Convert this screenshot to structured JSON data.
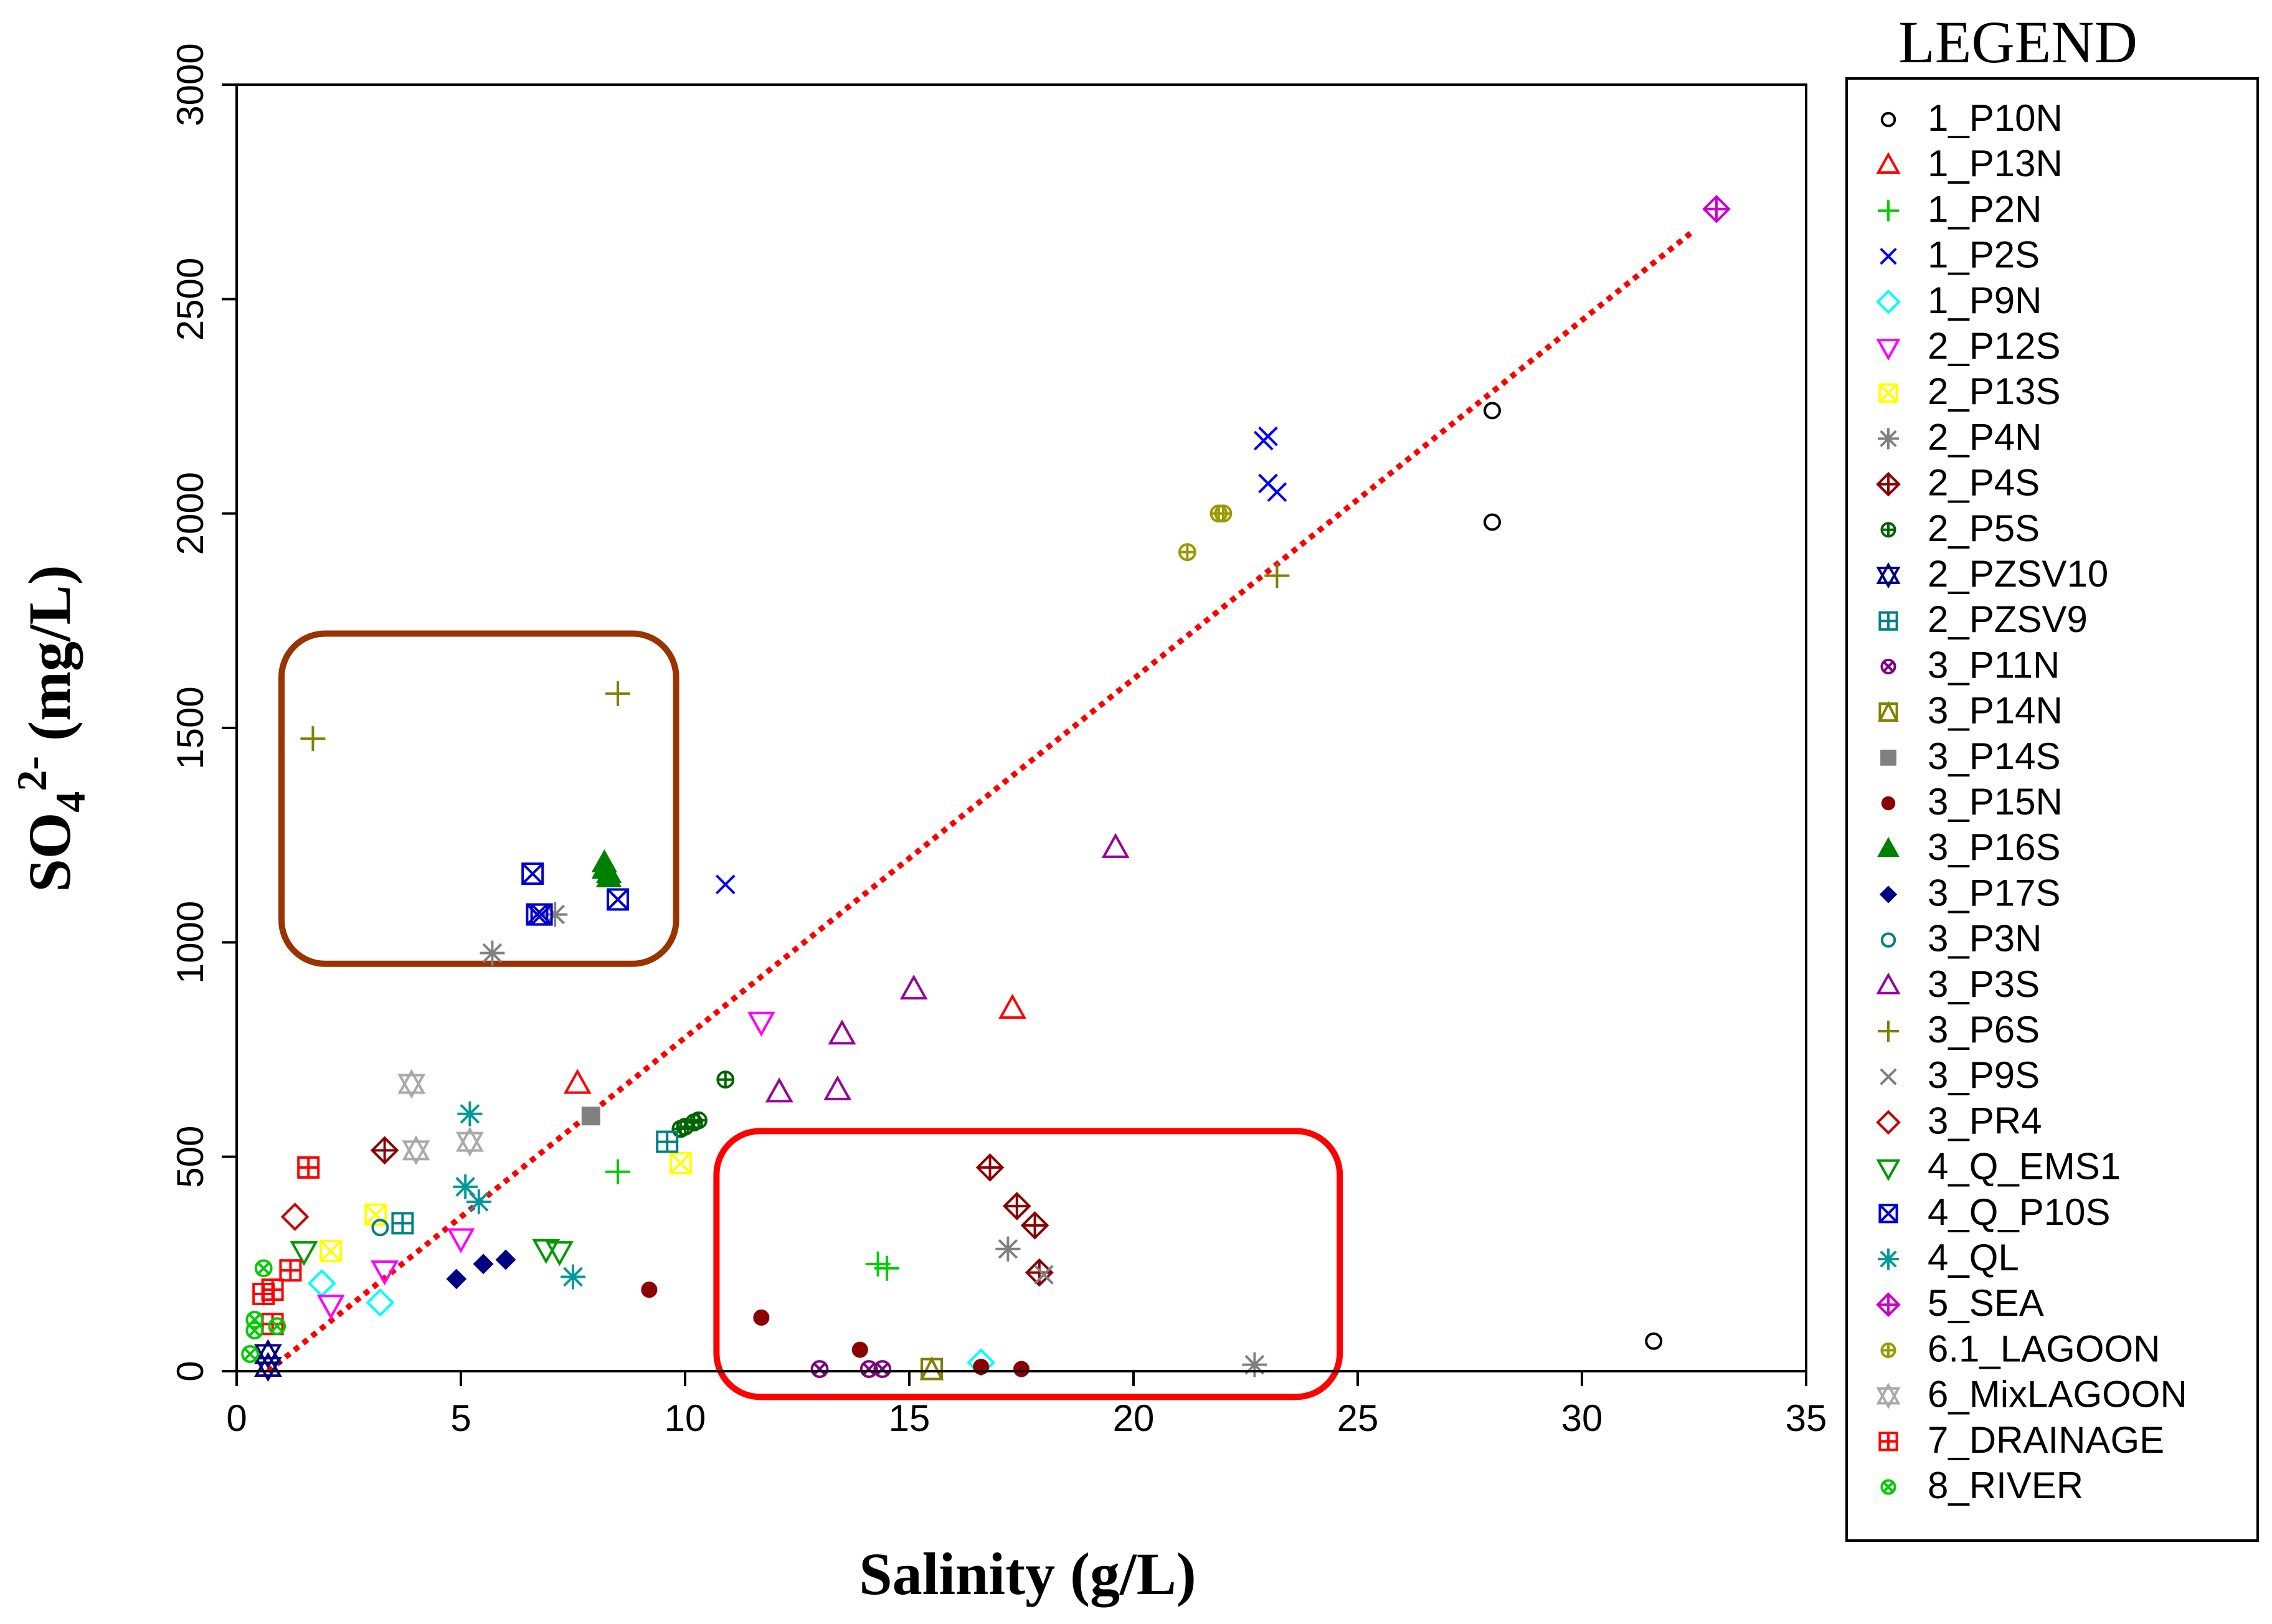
{
  "chart_data": {
    "type": "scatter",
    "title": "",
    "xlabel": "Salinity (g/L)",
    "ylabel": {
      "prefix": "SO",
      "sub": "4",
      "sup": "2-",
      "suffix": " (mg/L)"
    },
    "xlim": [
      0,
      35
    ],
    "ylim": [
      0,
      3000
    ],
    "xticks": [
      0,
      5,
      10,
      15,
      20,
      25,
      30,
      35
    ],
    "yticks": [
      0,
      500,
      1000,
      1500,
      2000,
      2500,
      3000
    ],
    "grid": false,
    "legend": {
      "title": "LEGEND",
      "position": "right"
    },
    "series": [
      {
        "name": "1_P10N",
        "color": "#000000",
        "marker": "circle-open",
        "points": [
          [
            28.0,
            2240
          ],
          [
            28.0,
            1980
          ],
          [
            31.6,
            70
          ]
        ]
      },
      {
        "name": "1_P13N",
        "color": "#ff0000",
        "marker": "triangle-up",
        "points": [
          [
            7.6,
            670
          ],
          [
            17.3,
            845
          ]
        ]
      },
      {
        "name": "1_P2N",
        "color": "#00cc00",
        "marker": "plus",
        "points": [
          [
            8.5,
            465
          ],
          [
            14.3,
            250
          ],
          [
            14.5,
            240
          ]
        ]
      },
      {
        "name": "1_P2S",
        "color": "#0000ff",
        "marker": "x",
        "points": [
          [
            10.9,
            1135
          ],
          [
            23.0,
            2180
          ],
          [
            22.9,
            2170
          ],
          [
            23.0,
            2070
          ],
          [
            23.2,
            2050
          ]
        ]
      },
      {
        "name": "1_P9N",
        "color": "#00ffff",
        "marker": "diamond",
        "points": [
          [
            1.9,
            205
          ],
          [
            3.2,
            160
          ],
          [
            16.6,
            20
          ]
        ]
      },
      {
        "name": "2_P12S",
        "color": "#ff00ff",
        "marker": "triangle-down",
        "points": [
          [
            2.1,
            155
          ],
          [
            3.3,
            235
          ],
          [
            5.0,
            310
          ],
          [
            11.7,
            815
          ]
        ]
      },
      {
        "name": "2_P13S",
        "color": "#ffff00",
        "marker": "square-x",
        "points": [
          [
            2.1,
            280
          ],
          [
            3.1,
            365
          ],
          [
            9.9,
            485
          ]
        ]
      },
      {
        "name": "2_P4N",
        "color": "#808080",
        "marker": "asterisk",
        "points": [
          [
            5.7,
            975
          ],
          [
            7.1,
            1065
          ],
          [
            17.2,
            285
          ],
          [
            22.7,
            15
          ]
        ]
      },
      {
        "name": "2_P4S",
        "color": "#8b0000",
        "marker": "diamond-plus",
        "points": [
          [
            3.3,
            515
          ],
          [
            16.8,
            475
          ],
          [
            17.4,
            385
          ],
          [
            17.8,
            340
          ],
          [
            17.9,
            230
          ]
        ]
      },
      {
        "name": "2_P5S",
        "color": "#006400",
        "marker": "circle-plus",
        "points": [
          [
            9.9,
            565
          ],
          [
            10.0,
            570
          ],
          [
            10.2,
            580
          ],
          [
            10.3,
            585
          ],
          [
            10.9,
            680
          ]
        ]
      },
      {
        "name": "2_PZSV10",
        "color": "#000080",
        "marker": "star6",
        "points": [
          [
            0.7,
            40
          ],
          [
            0.7,
            10
          ]
        ]
      },
      {
        "name": "2_PZSV9",
        "color": "#008080",
        "marker": "square-plus",
        "points": [
          [
            3.7,
            345
          ],
          [
            9.6,
            535
          ]
        ]
      },
      {
        "name": "3_P11N",
        "color": "#800080",
        "marker": "circle-x",
        "points": [
          [
            13.0,
            5
          ],
          [
            14.1,
            5
          ],
          [
            14.4,
            5
          ]
        ]
      },
      {
        "name": "3_P14N",
        "color": "#808000",
        "marker": "square-triangle",
        "points": [
          [
            15.5,
            5
          ]
        ]
      },
      {
        "name": "3_P14S",
        "color": "#808080",
        "marker": "square-filled",
        "points": [
          [
            7.9,
            595
          ]
        ]
      },
      {
        "name": "3_P15N",
        "color": "#8b0000",
        "marker": "circle-filled",
        "points": [
          [
            9.2,
            190
          ],
          [
            11.7,
            125
          ],
          [
            13.9,
            50
          ],
          [
            16.6,
            10
          ],
          [
            17.5,
            5
          ]
        ]
      },
      {
        "name": "3_P16S",
        "color": "#008000",
        "marker": "triangle-filled",
        "points": [
          [
            8.2,
            1185
          ],
          [
            8.2,
            1170
          ],
          [
            8.3,
            1160
          ],
          [
            8.3,
            1150
          ]
        ]
      },
      {
        "name": "3_P17S",
        "color": "#000080",
        "marker": "diamond-filled",
        "points": [
          [
            4.9,
            215
          ],
          [
            5.5,
            250
          ],
          [
            6.0,
            260
          ]
        ]
      },
      {
        "name": "3_P3N",
        "color": "#008080",
        "marker": "circle-open",
        "points": [
          [
            3.2,
            335
          ]
        ]
      },
      {
        "name": "3_P3S",
        "color": "#990099",
        "marker": "triangle-up",
        "points": [
          [
            12.1,
            650
          ],
          [
            13.4,
            655
          ],
          [
            13.5,
            785
          ],
          [
            15.1,
            890
          ],
          [
            19.6,
            1220
          ]
        ]
      },
      {
        "name": "3_P6S",
        "color": "#808000",
        "marker": "plus",
        "points": [
          [
            1.7,
            1475
          ],
          [
            8.5,
            1580
          ],
          [
            23.2,
            1855
          ]
        ]
      },
      {
        "name": "3_P9S",
        "color": "#808080",
        "marker": "x",
        "points": [
          [
            18.0,
            225
          ]
        ]
      },
      {
        "name": "3_PR4",
        "color": "#cc0000",
        "marker": "diamond",
        "points": [
          [
            1.3,
            360
          ]
        ]
      },
      {
        "name": "4_Q_EMS1",
        "color": "#009900",
        "marker": "triangle-down",
        "points": [
          [
            1.5,
            280
          ],
          [
            6.9,
            285
          ],
          [
            7.2,
            280
          ]
        ]
      },
      {
        "name": "4_Q_P10S",
        "color": "#0000cc",
        "marker": "square-x",
        "points": [
          [
            6.6,
            1160
          ],
          [
            6.7,
            1065
          ],
          [
            6.8,
            1065
          ],
          [
            8.5,
            1100
          ]
        ]
      },
      {
        "name": "4_QL",
        "color": "#009999",
        "marker": "asterisk",
        "points": [
          [
            5.1,
            430
          ],
          [
            5.2,
            600
          ],
          [
            5.4,
            395
          ],
          [
            7.5,
            220
          ]
        ]
      },
      {
        "name": "5_SEA",
        "color": "#cc00cc",
        "marker": "diamond-plus",
        "points": [
          [
            33.0,
            2710
          ]
        ]
      },
      {
        "name": "6.1_LAGOON",
        "color": "#999900",
        "marker": "circle-plus",
        "points": [
          [
            21.2,
            1910
          ],
          [
            21.9,
            2000
          ],
          [
            22.0,
            2000
          ]
        ]
      },
      {
        "name": "6_MixLAGOON",
        "color": "#aaaaaa",
        "marker": "star6",
        "points": [
          [
            3.9,
            670
          ],
          [
            4.0,
            515
          ],
          [
            5.2,
            535
          ]
        ]
      },
      {
        "name": "7_DRAINAGE",
        "color": "#ff0000",
        "marker": "square-plus",
        "points": [
          [
            0.6,
            180
          ],
          [
            0.8,
            190
          ],
          [
            0.8,
            110
          ],
          [
            1.2,
            235
          ],
          [
            1.6,
            475
          ]
        ]
      },
      {
        "name": "8_RIVER",
        "color": "#00cc00",
        "marker": "circle-x",
        "points": [
          [
            0.3,
            40
          ],
          [
            0.4,
            120
          ],
          [
            0.4,
            95
          ],
          [
            0.6,
            240
          ],
          [
            0.9,
            105
          ]
        ]
      }
    ],
    "annotations": [
      {
        "type": "dotted-line",
        "color": "#ff0000",
        "from": [
          0.7,
          0
        ],
        "to": [
          32.5,
          2660
        ]
      },
      {
        "type": "rounded-rect",
        "color": "#993300",
        "from": [
          1.0,
          950
        ],
        "to": [
          9.8,
          1720
        ]
      },
      {
        "type": "rounded-rect",
        "color": "#ff0000",
        "from": [
          10.7,
          -60
        ],
        "to": [
          24.6,
          560
        ]
      }
    ]
  }
}
